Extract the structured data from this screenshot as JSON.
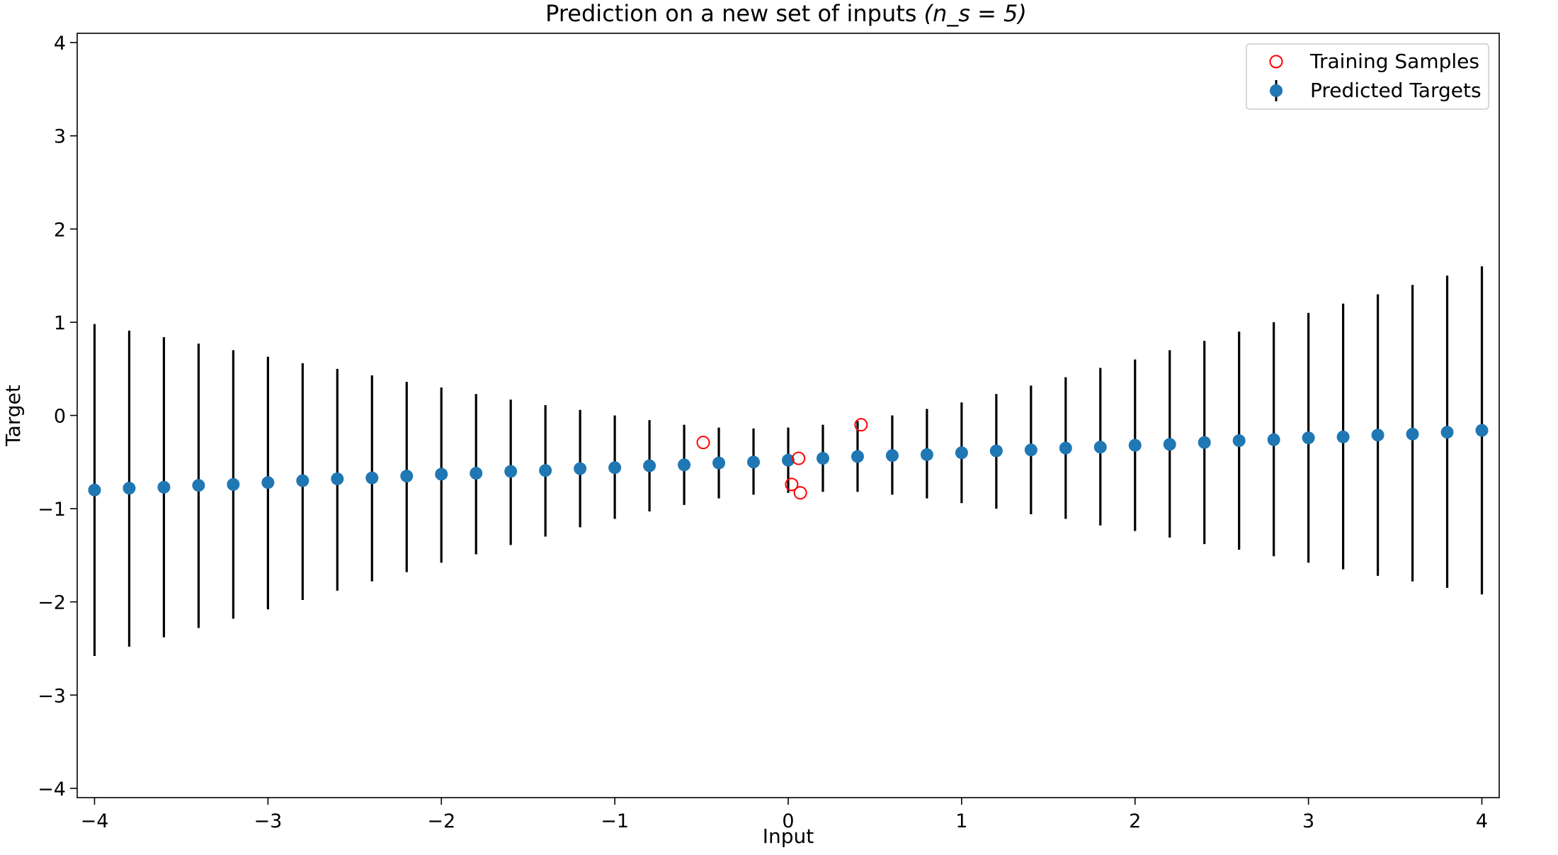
{
  "chart_data": {
    "type": "scatter",
    "title": "Prediction on a new set of inputs",
    "title_math": "(n_s = 5)",
    "xlabel": "Input",
    "ylabel": "Target",
    "xlim": [
      -4.1,
      4.1
    ],
    "ylim": [
      -4.1,
      4.1
    ],
    "xticks": [
      -4,
      -3,
      -2,
      -1,
      0,
      1,
      2,
      3,
      4
    ],
    "yticks": [
      -4,
      -3,
      -2,
      -1,
      0,
      1,
      2,
      3,
      4
    ],
    "xtick_labels": [
      "−4",
      "−3",
      "−2",
      "−1",
      "0",
      "1",
      "2",
      "3",
      "4"
    ],
    "ytick_labels": [
      "−4",
      "−3",
      "−2",
      "−1",
      "0",
      "1",
      "2",
      "3",
      "4"
    ],
    "legend_position": "top-right",
    "series": [
      {
        "name": "Training Samples",
        "kind": "scatter",
        "marker": "open-circle",
        "color": "#ff0000",
        "x": [
          -0.49,
          0.06,
          0.02,
          0.07,
          0.42
        ],
        "y": [
          -0.29,
          -0.46,
          -0.74,
          -0.83,
          -0.1
        ]
      },
      {
        "name": "Predicted Targets",
        "kind": "errorbar",
        "marker": "filled-circle",
        "color": "#1f77b4",
        "errorbar_color": "#000000",
        "x": [
          -4.0,
          -3.8,
          -3.6,
          -3.4,
          -3.2,
          -3.0,
          -2.8,
          -2.6,
          -2.4,
          -2.2,
          -2.0,
          -1.8,
          -1.6,
          -1.4,
          -1.2,
          -1.0,
          -0.8,
          -0.6,
          -0.4,
          -0.2,
          0.0,
          0.2,
          0.4,
          0.6,
          0.8,
          1.0,
          1.2,
          1.4,
          1.6,
          1.8,
          2.0,
          2.2,
          2.4,
          2.6,
          2.8,
          3.0,
          3.2,
          3.4,
          3.6,
          3.8,
          4.0
        ],
        "y": [
          -0.8,
          -0.78,
          -0.77,
          -0.75,
          -0.74,
          -0.72,
          -0.7,
          -0.68,
          -0.67,
          -0.65,
          -0.63,
          -0.62,
          -0.6,
          -0.59,
          -0.57,
          -0.56,
          -0.54,
          -0.53,
          -0.51,
          -0.5,
          -0.48,
          -0.46,
          -0.44,
          -0.43,
          -0.42,
          -0.4,
          -0.38,
          -0.37,
          -0.35,
          -0.34,
          -0.32,
          -0.31,
          -0.29,
          -0.27,
          -0.26,
          -0.24,
          -0.23,
          -0.21,
          -0.2,
          -0.18,
          -0.16
        ],
        "err_low": [
          -2.58,
          -2.48,
          -2.38,
          -2.28,
          -2.18,
          -2.08,
          -1.98,
          -1.88,
          -1.78,
          -1.68,
          -1.58,
          -1.49,
          -1.39,
          -1.3,
          -1.2,
          -1.11,
          -1.03,
          -0.96,
          -0.89,
          -0.85,
          -0.83,
          -0.82,
          -0.82,
          -0.85,
          -0.89,
          -0.94,
          -1.0,
          -1.06,
          -1.11,
          -1.18,
          -1.24,
          -1.31,
          -1.38,
          -1.44,
          -1.51,
          -1.58,
          -1.65,
          -1.72,
          -1.78,
          -1.85,
          -1.92
        ],
        "err_high": [
          0.98,
          0.91,
          0.84,
          0.77,
          0.7,
          0.63,
          0.56,
          0.5,
          0.43,
          0.36,
          0.3,
          0.23,
          0.17,
          0.11,
          0.06,
          0.0,
          -0.05,
          -0.1,
          -0.13,
          -0.14,
          -0.13,
          -0.1,
          -0.06,
          0.0,
          0.07,
          0.14,
          0.23,
          0.32,
          0.41,
          0.51,
          0.6,
          0.7,
          0.8,
          0.9,
          1.0,
          1.1,
          1.2,
          1.3,
          1.4,
          1.5,
          1.6
        ]
      }
    ]
  }
}
